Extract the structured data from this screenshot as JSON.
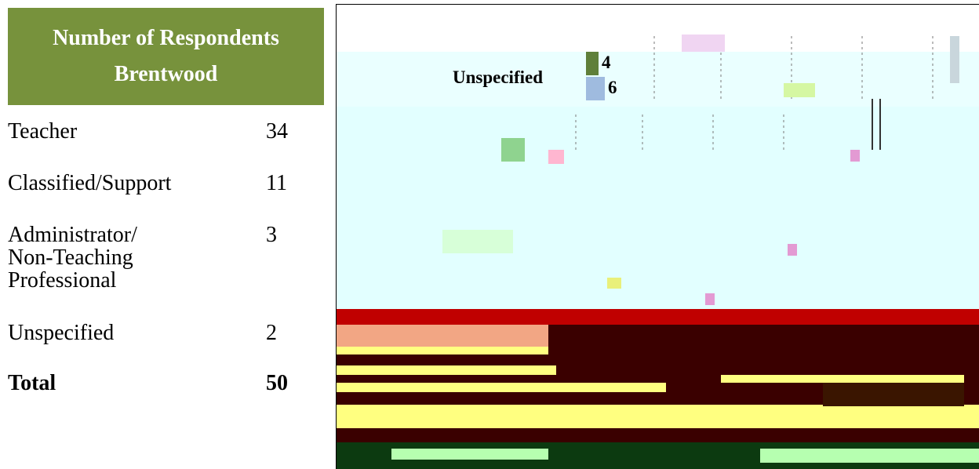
{
  "table": {
    "header_line1": "Number of Respondents",
    "header_line2": "Brentwood",
    "rows": [
      {
        "label": "Teacher",
        "value": "34"
      },
      {
        "label": "Classified/Support",
        "value": "11"
      },
      {
        "label_lines": [
          "Administrator/",
          "Non-Teaching",
          "Professional"
        ],
        "value": "3"
      },
      {
        "label": "Unspecified",
        "value": "2"
      }
    ],
    "total": {
      "label": "Total",
      "value": "50"
    }
  },
  "chart_data": {
    "type": "bar",
    "categories": [
      "Unspecified"
    ],
    "series": [
      {
        "values": [
          4
        ]
      },
      {
        "values": [
          6
        ]
      }
    ],
    "title": "",
    "xlabel": "",
    "ylabel": "",
    "colors": [
      "#5f7f3a",
      "#9fbbdf"
    ]
  }
}
